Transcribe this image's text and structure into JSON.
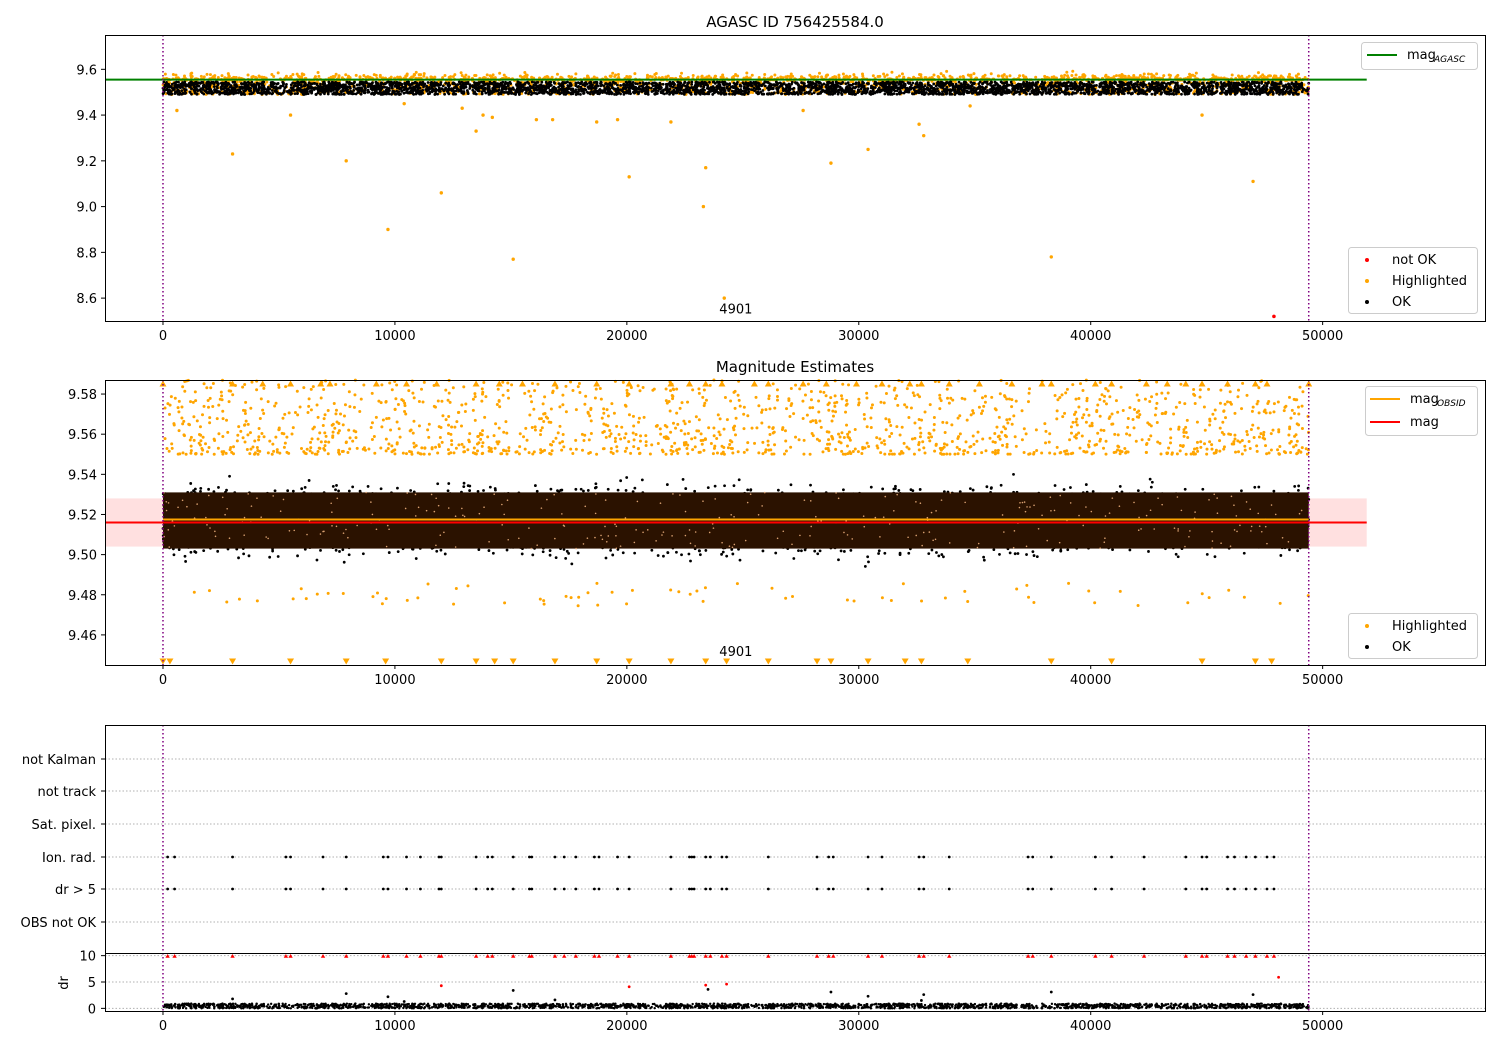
{
  "chart_data": [
    {
      "type": "scatter",
      "title": "AGASC ID 756425584.0",
      "xlim": [
        -2500,
        57000
      ],
      "ylim": [
        8.5,
        9.75
      ],
      "xticks": [
        0,
        10000,
        20000,
        30000,
        40000,
        50000
      ],
      "yticks": [
        8.6,
        8.8,
        9.0,
        9.2,
        9.4,
        9.6
      ],
      "ytick_labels": [
        "8.6",
        "8.8",
        "9.0",
        "9.2",
        "9.4",
        "9.6"
      ],
      "grid": false,
      "obsid_label": {
        "text": "4901",
        "x": 24700,
        "y": 8.555
      },
      "vlines": [
        0,
        49400
      ],
      "hline": {
        "name": "mag_AGASC",
        "y": 9.555,
        "x_range": [
          -2500,
          51900
        ],
        "color": "#008000"
      },
      "line_legend": {
        "entries": [
          {
            "label": "mag",
            "sub": "AGASC",
            "color": "#008000"
          }
        ],
        "placement": "top-right"
      },
      "series": [
        {
          "name": "not OK",
          "color": "#ff0000",
          "points": [
            [
              47900,
              8.52
            ]
          ]
        },
        {
          "name": "Highlighted",
          "color": "#ffa500",
          "band": [
            9.49,
            9.63
          ],
          "dense": true,
          "outliers": [
            [
              3000,
              9.23
            ],
            [
              7900,
              9.2
            ],
            [
              9700,
              8.9
            ],
            [
              12000,
              9.06
            ],
            [
              15100,
              8.77
            ],
            [
              18700,
              9.37
            ],
            [
              20100,
              9.13
            ],
            [
              21900,
              9.37
            ],
            [
              23400,
              9.17
            ],
            [
              23300,
              9.0
            ],
            [
              24200,
              8.6
            ],
            [
              28800,
              9.19
            ],
            [
              30400,
              9.25
            ],
            [
              32600,
              9.36
            ],
            [
              32800,
              9.31
            ],
            [
              38300,
              8.78
            ],
            [
              47000,
              9.11
            ],
            [
              13500,
              9.33
            ],
            [
              13800,
              9.4
            ],
            [
              14200,
              9.39
            ],
            [
              16100,
              9.38
            ],
            [
              16800,
              9.38
            ],
            [
              5500,
              9.4
            ],
            [
              600,
              9.42
            ],
            [
              10400,
              9.45
            ],
            [
              34800,
              9.44
            ],
            [
              12900,
              9.43
            ],
            [
              44800,
              9.4
            ],
            [
              27600,
              9.42
            ],
            [
              19600,
              9.38
            ]
          ]
        },
        {
          "name": "OK",
          "color": "#000000",
          "band": [
            9.49,
            9.545
          ],
          "dense": true
        }
      ],
      "scatter_legend": {
        "entries": [
          "not OK",
          "Highlighted",
          "OK"
        ],
        "placement": "lower-right"
      }
    },
    {
      "type": "scatter",
      "title": "Magnitude Estimates",
      "xlim": [
        -2500,
        57000
      ],
      "ylim": [
        9.445,
        9.587
      ],
      "xticks": [
        0,
        10000,
        20000,
        30000,
        40000,
        50000
      ],
      "yticks": [
        9.46,
        9.48,
        9.5,
        9.52,
        9.54,
        9.56,
        9.58
      ],
      "ytick_labels": [
        "9.46",
        "9.48",
        "9.50",
        "9.52",
        "9.54",
        "9.56",
        "9.58"
      ],
      "grid": false,
      "obsid_label": {
        "text": "4901",
        "x": 24700,
        "y": 9.448
      },
      "vlines": [
        0,
        49400
      ],
      "mag_band": {
        "lo": 9.504,
        "hi": 9.528,
        "x_range": [
          -2500,
          51900
        ],
        "color": "#ffe0e0"
      },
      "hlines": [
        {
          "name": "mag_OBSID",
          "y": 9.5175,
          "x_range": [
            0,
            49400
          ],
          "color": "#ffa500"
        },
        {
          "name": "mag",
          "y": 9.516,
          "x_range": [
            -2500,
            51900
          ],
          "color": "#ff0000"
        }
      ],
      "line_legend": {
        "entries": [
          {
            "label": "mag",
            "sub": "OBSID",
            "color": "#ffa500"
          },
          {
            "label": "mag",
            "sub": "",
            "color": "#ff0000"
          }
        ],
        "placement": "top-right"
      },
      "series": [
        {
          "name": "Highlighted",
          "color": "#ffa500",
          "band": [
            9.55,
            9.587
          ],
          "dense": true,
          "upper_limits_y": 9.586,
          "lower_limits_y": 9.446
        },
        {
          "name": "OK",
          "color": "#000000",
          "band": [
            9.485,
            9.55
          ],
          "core": [
            9.503,
            9.531
          ],
          "dense": true
        }
      ],
      "scatter_legend": {
        "entries": [
          "Highlighted",
          "OK"
        ],
        "placement": "lower-right"
      }
    },
    {
      "type": "scatter",
      "title": "",
      "xlim": [
        -2500,
        57000
      ],
      "categories": [
        "not Kalman",
        "not track",
        "Sat. pixel.",
        "Ion. rad.",
        "dr > 5",
        "OBS not OK"
      ],
      "vlines": [
        0,
        49400
      ],
      "grid": true,
      "flag_x": [
        200,
        500,
        3000,
        5300,
        5500,
        6900,
        7900,
        9500,
        9700,
        10500,
        11100,
        11900,
        12000,
        13500,
        14000,
        14200,
        15100,
        15800,
        15900,
        16900,
        17300,
        17800,
        18600,
        18800,
        19600,
        20100,
        21900,
        22700,
        22800,
        22900,
        23400,
        23600,
        24100,
        24300,
        26100,
        28200,
        28700,
        28900,
        30400,
        31000,
        32600,
        32800,
        33900,
        37300,
        37500,
        38300,
        40200,
        40900,
        42300,
        44100,
        44800,
        45000,
        45900,
        46200,
        46700,
        47100,
        47600,
        47900
      ],
      "flag_categories": [
        "Ion. rad.",
        "dr > 5"
      ]
    },
    {
      "type": "scatter",
      "title": "",
      "xlim": [
        -2500,
        57000
      ],
      "ylim": [
        -0.5,
        10.5
      ],
      "ylabel": "dr",
      "xticks": [
        0,
        10000,
        20000,
        30000,
        40000,
        50000
      ],
      "yticks": [
        0,
        5,
        10
      ],
      "ytick_labels": [
        "0",
        "5",
        "10"
      ],
      "grid": true,
      "vlines": [
        0,
        49400
      ],
      "band": [
        0,
        0.9
      ],
      "capped_y": 9.9,
      "outliers": [
        [
          3000,
          1.8
        ],
        [
          7900,
          2.8
        ],
        [
          9700,
          2.2
        ],
        [
          12000,
          4.3
        ],
        [
          15100,
          3.4
        ],
        [
          20100,
          4.1
        ],
        [
          23400,
          4.4
        ],
        [
          23500,
          3.6
        ],
        [
          24300,
          4.6
        ],
        [
          28800,
          3.1
        ],
        [
          30400,
          2.3
        ],
        [
          32800,
          2.6
        ],
        [
          38300,
          3.1
        ],
        [
          47000,
          2.6
        ],
        [
          48100,
          5.9
        ],
        [
          16900,
          1.6
        ],
        [
          32700,
          1.5
        ],
        [
          10400,
          1.3
        ]
      ]
    }
  ]
}
